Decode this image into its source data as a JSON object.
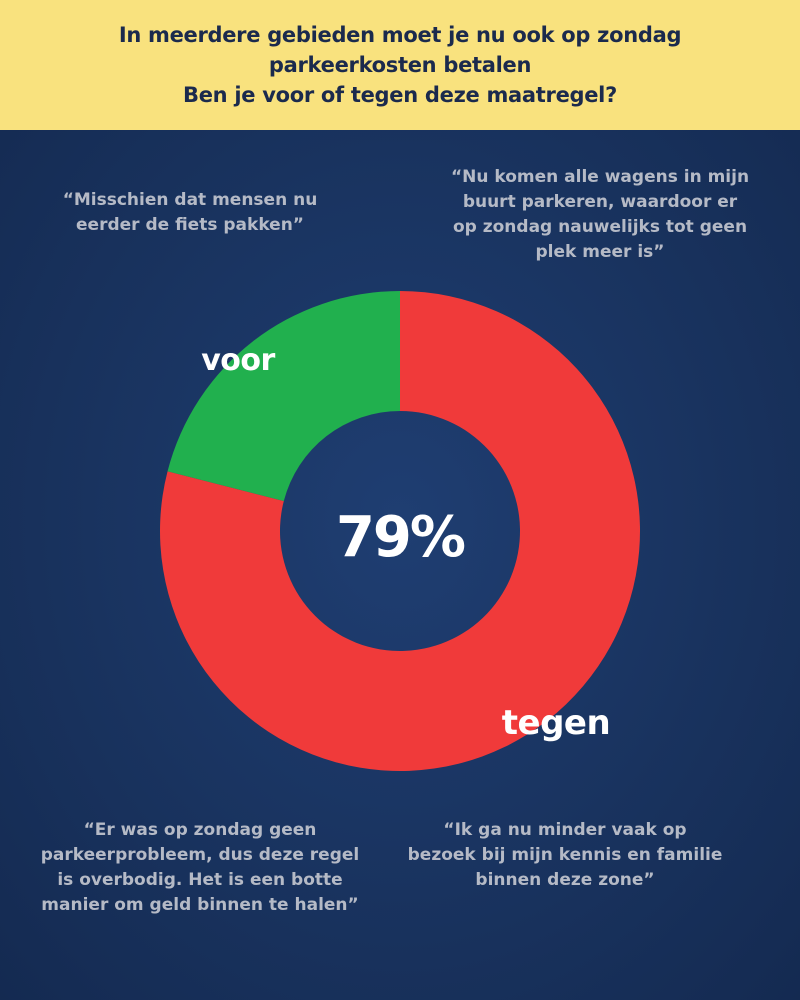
{
  "header": {
    "title_lines": [
      "In meerdere gebieden moet je nu ook op zondag",
      "parkeerkosten betalen",
      "Ben je voor of tegen deze maatregel?"
    ]
  },
  "quotes": [
    {
      "lines": [
        "“Misschien dat mensen nu",
        "eerder de fiets pakken”"
      ]
    },
    {
      "lines": [
        "“Nu komen alle wagens in mijn",
        "buurt parkeren, waardoor er",
        "op zondag nauwelijks tot geen",
        "plek meer is”"
      ]
    },
    {
      "lines": [
        "“Er was op zondag geen",
        "parkeerprobleem, dus deze regel",
        "is overbodig. Het is een botte",
        "manier om geld binnen te halen”"
      ]
    },
    {
      "lines": [
        "“Ik ga nu minder vaak op",
        "bezoek bij mijn kennis en familie",
        "binnen deze zone”"
      ]
    }
  ],
  "chart_data": {
    "type": "pie",
    "variant": "donut",
    "categories": [
      "voor",
      "tegen"
    ],
    "values": [
      21,
      79
    ],
    "colors": [
      "#21b04e",
      "#f03a3a"
    ],
    "center_label": "79%"
  },
  "colors": {
    "header_bg": "#f9e27e",
    "header_text": "#1b2a4d",
    "background": "#1a3460",
    "quote_text": "#b5bac6",
    "label_text": "#ffffff"
  }
}
